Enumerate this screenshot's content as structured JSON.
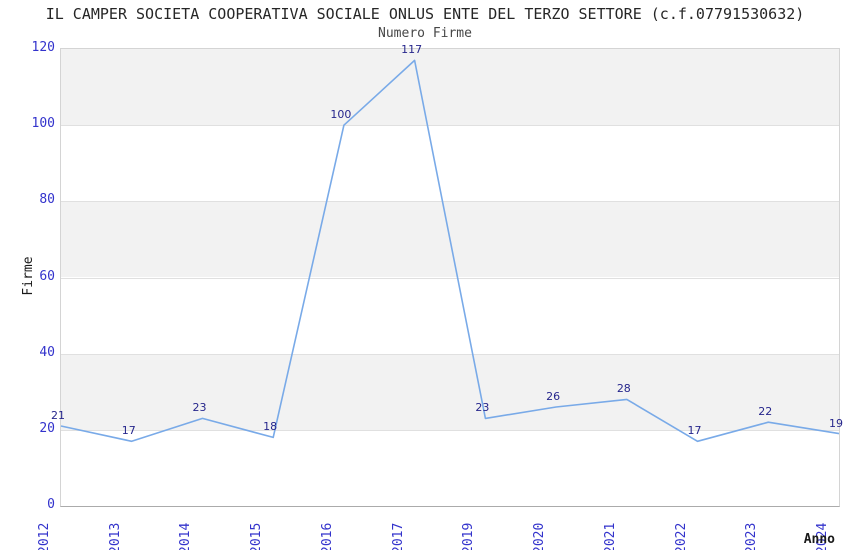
{
  "header": {
    "title": "IL CAMPER SOCIETA COOPERATIVA SOCIALE ONLUS ENTE DEL TERZO SETTORE (c.f.07791530632)",
    "subtitle": "Numero Firme"
  },
  "chart_data": {
    "type": "line",
    "title": "Numero Firme",
    "categories": [
      "2012",
      "2013",
      "2014",
      "2015",
      "2016",
      "2017",
      "2019",
      "2020",
      "2021",
      "2022",
      "2023",
      "2024"
    ],
    "values": [
      21,
      17,
      23,
      18,
      100,
      117,
      23,
      26,
      28,
      17,
      22,
      19
    ],
    "xlabel": "Anno",
    "ylabel": "Firme",
    "ylim": [
      0,
      120
    ],
    "yticks": [
      0,
      20,
      40,
      60,
      80,
      100,
      120
    ],
    "grid": true,
    "legend": "none",
    "colors": {
      "line": "#79aae8",
      "tick_labels": "#3333cc",
      "point_labels": "#26268c",
      "band_gray": "#f2f2f2",
      "band_white": "#ffffff",
      "gridline": "#e0e0e0",
      "title_text": "#262626",
      "axis_title_text": "#1a1a1a"
    }
  }
}
